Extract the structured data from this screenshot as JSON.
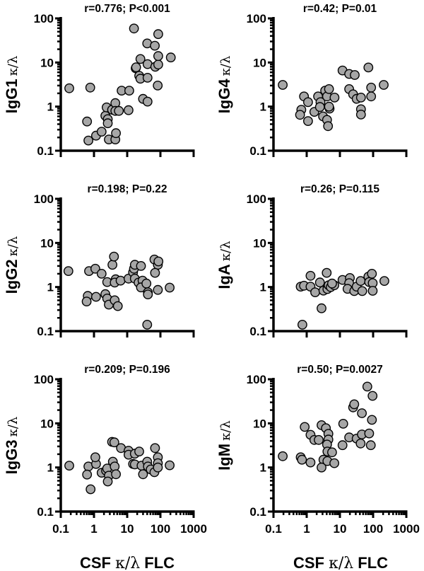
{
  "x_axis_label": {
    "prefix": "CSF ",
    "symbol": "κ/λ",
    "suffix": " FLC"
  },
  "marker_fill": "#a6a6a6",
  "marker_stroke": "#000000",
  "chart_data": [
    {
      "type": "scatter",
      "title": "r=0.776; P<0.001",
      "ylabel": "IgG1",
      "ylabel_symbol": "κ/λ",
      "xscale": "log",
      "yscale": "log",
      "xlim": [
        0.1,
        1000
      ],
      "ylim": [
        0.1,
        100
      ],
      "xtick_labels": [
        "0.1",
        "1",
        "10",
        "100",
        "1000"
      ],
      "ytick_labels": [
        "0.1",
        "1",
        "10",
        "100"
      ],
      "points": [
        [
          0.18,
          2.6
        ],
        [
          0.62,
          0.46
        ],
        [
          0.77,
          2.7
        ],
        [
          0.68,
          0.17
        ],
        [
          1.15,
          0.22
        ],
        [
          1.7,
          0.27
        ],
        [
          2.2,
          0.62
        ],
        [
          2.6,
          0.52
        ],
        [
          2.6,
          0.42
        ],
        [
          2.8,
          0.18
        ],
        [
          4.4,
          0.18
        ],
        [
          4.6,
          0.25
        ],
        [
          2.4,
          0.96
        ],
        [
          3.5,
          0.85
        ],
        [
          4.4,
          1.2
        ],
        [
          4.4,
          0.8
        ],
        [
          5.6,
          0.8
        ],
        [
          6.8,
          2.3
        ],
        [
          11.5,
          2.3
        ],
        [
          11,
          0.83
        ],
        [
          16,
          59
        ],
        [
          18,
          7.4
        ],
        [
          18.5,
          7.8
        ],
        [
          23,
          5
        ],
        [
          25,
          4.3
        ],
        [
          25,
          12
        ],
        [
          30,
          1.5
        ],
        [
          40,
          27
        ],
        [
          41,
          9.2
        ],
        [
          41,
          4.5
        ],
        [
          41,
          1.3
        ],
        [
          68,
          24
        ],
        [
          70,
          8
        ],
        [
          83,
          3
        ],
        [
          86,
          9
        ],
        [
          86,
          14
        ],
        [
          86,
          44
        ],
        [
          205,
          13
        ]
      ]
    },
    {
      "type": "scatter",
      "title": "r=0.42; P=0.01",
      "ylabel": "IgG4",
      "ylabel_symbol": "κ/λ",
      "xscale": "log",
      "yscale": "log",
      "xlim": [
        0.1,
        1000
      ],
      "ylim": [
        0.1,
        100
      ],
      "xtick_labels": [
        "0.1",
        "1",
        "10",
        "100",
        "1000"
      ],
      "ytick_labels": [
        "0.1",
        "1",
        "10",
        "100"
      ],
      "points": [
        [
          0.19,
          3.1
        ],
        [
          0.83,
          1.7
        ],
        [
          1.1,
          1.26
        ],
        [
          0.69,
          0.85
        ],
        [
          0.63,
          0.65
        ],
        [
          1.1,
          0.47
        ],
        [
          1.7,
          0.76
        ],
        [
          2.2,
          1.7
        ],
        [
          2.6,
          1.26
        ],
        [
          2.5,
          0.98
        ],
        [
          3.1,
          0.6
        ],
        [
          3.6,
          2.3
        ],
        [
          4.1,
          1.7
        ],
        [
          4.7,
          2.5
        ],
        [
          4.1,
          0.5
        ],
        [
          4.4,
          0.36
        ],
        [
          4.9,
          0.9
        ],
        [
          4.7,
          1.0
        ],
        [
          6.9,
          1.6
        ],
        [
          12,
          6.6
        ],
        [
          19,
          5.5
        ],
        [
          28,
          5.2
        ],
        [
          19,
          2.5
        ],
        [
          25,
          1.9
        ],
        [
          32,
          1.5
        ],
        [
          43,
          1.6
        ],
        [
          43,
          0.87
        ],
        [
          43,
          0.66
        ],
        [
          72,
          7.7
        ],
        [
          87,
          2.7
        ],
        [
          87,
          1.7
        ],
        [
          209,
          3.1
        ]
      ]
    },
    {
      "type": "scatter",
      "title": "r=0.198; P=0.22",
      "ylabel": "IgG2",
      "ylabel_symbol": "κ/λ",
      "xscale": "log",
      "yscale": "log",
      "xlim": [
        0.1,
        1000
      ],
      "ylim": [
        0.1,
        100
      ],
      "xtick_labels": [
        "0.1",
        "1",
        "10",
        "100",
        "1000"
      ],
      "ytick_labels": [
        "0.1",
        "1",
        "10",
        "100"
      ],
      "points": [
        [
          0.17,
          2.3
        ],
        [
          0.71,
          2.3
        ],
        [
          1.1,
          2.6
        ],
        [
          1.7,
          2.0
        ],
        [
          0.65,
          0.63
        ],
        [
          0.6,
          0.47
        ],
        [
          1.15,
          0.6
        ],
        [
          2.2,
          0.69
        ],
        [
          2.5,
          0.55
        ],
        [
          2.8,
          0.4
        ],
        [
          4.2,
          0.5
        ],
        [
          5.2,
          0.37
        ],
        [
          2.5,
          1.3
        ],
        [
          3.6,
          3.2
        ],
        [
          4.0,
          4.9
        ],
        [
          4.5,
          1.5
        ],
        [
          4.2,
          1.26
        ],
        [
          6.3,
          1.4
        ],
        [
          11,
          1.55
        ],
        [
          15,
          2.15
        ],
        [
          16,
          2.6
        ],
        [
          17,
          3.2
        ],
        [
          26,
          3.0
        ],
        [
          17,
          1.55
        ],
        [
          22,
          1.26
        ],
        [
          29,
          1.4
        ],
        [
          26,
          0.98
        ],
        [
          38,
          1.2
        ],
        [
          42,
          0.76
        ],
        [
          42,
          0.68
        ],
        [
          40,
          0.14
        ],
        [
          66,
          4.2
        ],
        [
          84,
          3.2
        ],
        [
          87,
          3.8
        ],
        [
          69,
          2.1
        ],
        [
          84,
          0.86
        ],
        [
          190,
          0.97
        ]
      ]
    },
    {
      "type": "scatter",
      "title": "r=0.26; P=0.115",
      "ylabel": "IgA",
      "ylabel_symbol": "κ/λ",
      "xscale": "log",
      "yscale": "log",
      "xlim": [
        0.1,
        1000
      ],
      "ylim": [
        0.1,
        100
      ],
      "xtick_labels": [
        "0.1",
        "1",
        "10",
        "100",
        "1000"
      ],
      "ytick_labels": [
        "0.1",
        "1",
        "10",
        "100"
      ],
      "points": [
        [
          0.74,
          0.14
        ],
        [
          0.66,
          1.02
        ],
        [
          0.83,
          1.07
        ],
        [
          1.3,
          1.8
        ],
        [
          1.3,
          1.02
        ],
        [
          1.8,
          0.76
        ],
        [
          2.5,
          1.27
        ],
        [
          2.8,
          0.33
        ],
        [
          3.2,
          0.83
        ],
        [
          4.0,
          2.1
        ],
        [
          4.2,
          0.9
        ],
        [
          4.6,
          1.1
        ],
        [
          5.3,
          1.0
        ],
        [
          6.8,
          1.1
        ],
        [
          12,
          1.45
        ],
        [
          20,
          1.6
        ],
        [
          19,
          1.23
        ],
        [
          17,
          0.91
        ],
        [
          27,
          0.81
        ],
        [
          32,
          1.02
        ],
        [
          42,
          1.37
        ],
        [
          47,
          0.81
        ],
        [
          72,
          1.72
        ],
        [
          92,
          2.0
        ],
        [
          76,
          1.3
        ],
        [
          97,
          1.23
        ],
        [
          97,
          0.82
        ],
        [
          218,
          1.37
        ],
        [
          5.8,
          1.2
        ]
      ]
    },
    {
      "type": "scatter",
      "title": "r=0.209; P=0.196",
      "ylabel": "IgG3",
      "ylabel_symbol": "κ/λ",
      "xscale": "log",
      "yscale": "log",
      "xlim": [
        0.1,
        1000
      ],
      "ylim": [
        0.1,
        100
      ],
      "xtick_labels": [
        "0.1",
        "1",
        "10",
        "100",
        "1000"
      ],
      "ytick_labels": [
        "0.1",
        "1",
        "10",
        "100"
      ],
      "points": [
        [
          0.18,
          1.1
        ],
        [
          0.68,
          1.05
        ],
        [
          0.62,
          0.69
        ],
        [
          0.79,
          0.32
        ],
        [
          1.15,
          1.2
        ],
        [
          1.1,
          1.7
        ],
        [
          1.7,
          0.76
        ],
        [
          2.3,
          0.85
        ],
        [
          2.5,
          0.95
        ],
        [
          2.8,
          0.65
        ],
        [
          2.6,
          0.48
        ],
        [
          3.5,
          3.8
        ],
        [
          4.1,
          3.7
        ],
        [
          3.7,
          1.35
        ],
        [
          4.2,
          1.05
        ],
        [
          4.6,
          0.7
        ],
        [
          6.5,
          2.75
        ],
        [
          11,
          2.4
        ],
        [
          11,
          1.95
        ],
        [
          17,
          2.05
        ],
        [
          23,
          2.3
        ],
        [
          15,
          1.2
        ],
        [
          17,
          1.17
        ],
        [
          27,
          1.1
        ],
        [
          30,
          0.7
        ],
        [
          40,
          1.35
        ],
        [
          42,
          1.05
        ],
        [
          51,
          0.9
        ],
        [
          66,
          0.78
        ],
        [
          69,
          2.75
        ],
        [
          84,
          1.7
        ],
        [
          84,
          1.25
        ],
        [
          84,
          1.0
        ],
        [
          190,
          1.12
        ]
      ]
    },
    {
      "type": "scatter",
      "title": "r=0.50; P=0.0027",
      "ylabel": "IgM",
      "ylabel_symbol": "κ/λ",
      "xscale": "log",
      "yscale": "log",
      "xlim": [
        0.1,
        1000
      ],
      "ylim": [
        0.1,
        100
      ],
      "xtick_labels": [
        "0.1",
        "1",
        "10",
        "100",
        "1000"
      ],
      "ytick_labels": [
        "0.1",
        "1",
        "10",
        "100"
      ],
      "points": [
        [
          0.19,
          1.8
        ],
        [
          0.66,
          1.7
        ],
        [
          0.72,
          1.5
        ],
        [
          1.3,
          1.3
        ],
        [
          0.87,
          8.3
        ],
        [
          1.3,
          5.5
        ],
        [
          1.7,
          4.2
        ],
        [
          2.3,
          4.2
        ],
        [
          2.8,
          9.1
        ],
        [
          3.2,
          1.5
        ],
        [
          2.8,
          1.0
        ],
        [
          3.8,
          7.8
        ],
        [
          4.5,
          5.8
        ],
        [
          4.5,
          4.3
        ],
        [
          4.1,
          3.3
        ],
        [
          4.2,
          2.3
        ],
        [
          5.8,
          2.2
        ],
        [
          4.2,
          1.4
        ],
        [
          6.8,
          1.25
        ],
        [
          12.6,
          9.8
        ],
        [
          12,
          3.2
        ],
        [
          19,
          4.8
        ],
        [
          25,
          23
        ],
        [
          27,
          27
        ],
        [
          32,
          4.5
        ],
        [
          46,
          17
        ],
        [
          46,
          5.6
        ],
        [
          42,
          3.5
        ],
        [
          76,
          5.9
        ],
        [
          85,
          3.2
        ],
        [
          92,
          12
        ],
        [
          67,
          68
        ],
        [
          96,
          42
        ]
      ]
    }
  ]
}
